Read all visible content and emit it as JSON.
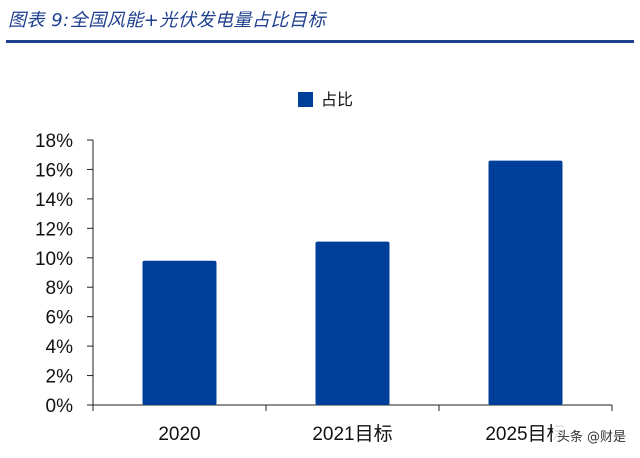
{
  "figure": {
    "title": "图表 9:全国风能+光伏发电量占比目标"
  },
  "watermark": "头条 @财是",
  "colors": {
    "bar": "#003f99",
    "title": "#1f3f8f"
  },
  "chart_data": {
    "type": "bar",
    "categories": [
      "2020",
      "2021目标",
      "2025目标"
    ],
    "series": [
      {
        "name": "占比",
        "values": [
          9.8,
          11.1,
          16.6
        ]
      }
    ],
    "y_unit": "%",
    "ylim": [
      0,
      18
    ],
    "yticks": [
      0,
      2,
      4,
      6,
      8,
      10,
      12,
      14,
      16,
      18
    ],
    "ytick_labels": [
      "0%",
      "2%",
      "4%",
      "6%",
      "8%",
      "10%",
      "12%",
      "14%",
      "16%",
      "18%"
    ],
    "grid": false,
    "legend_position": "top-center"
  }
}
